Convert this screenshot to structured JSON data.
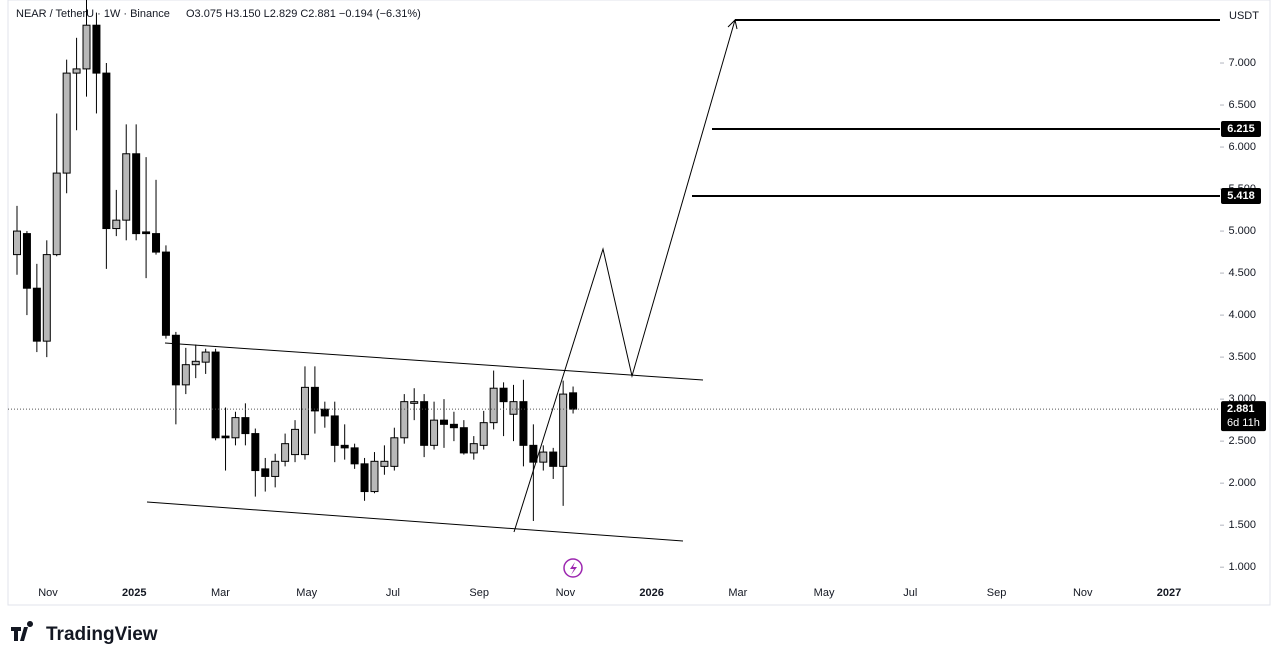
{
  "chart_data": {
    "type": "candlestick",
    "title": "NEAR / TetherU · 1W · Binance",
    "ohlc_text": "O3.075 H3.150 L2.829 C2.881 −0.194 (−6.31%)",
    "currency": "USDT",
    "brand": "TradingView",
    "up_color": "#b8b8b8",
    "down_color": "#000000",
    "open": [
      4.72,
      4.97,
      4.32,
      3.69,
      4.72,
      5.69,
      6.88,
      6.93,
      7.45,
      6.88,
      5.03,
      5.13,
      5.92,
      4.99,
      4.97,
      4.75,
      3.76,
      3.17,
      3.41,
      3.44,
      3.56,
      2.56,
      2.54,
      2.78,
      2.59,
      2.17,
      2.08,
      2.26,
      2.34,
      2.34,
      3.14,
      2.88,
      2.8,
      2.45,
      2.42,
      2.23,
      1.9,
      2.2,
      2.2,
      2.54,
      2.95,
      2.97,
      2.45,
      2.75,
      2.7,
      2.66,
      2.36,
      2.45,
      2.72,
      3.13,
      2.82,
      2.97,
      2.45,
      2.25,
      2.37,
      2.2,
      3.075
    ],
    "high": [
      5.3,
      5.0,
      4.61,
      4.89,
      6.4,
      7.04,
      7.3,
      7.8,
      7.6,
      7.0,
      5.49,
      6.27,
      6.27,
      5.88,
      5.61,
      4.83,
      3.8,
      3.61,
      3.65,
      3.6,
      3.6,
      2.9,
      2.85,
      2.95,
      2.65,
      2.3,
      2.35,
      2.59,
      2.75,
      3.39,
      3.39,
      2.97,
      2.97,
      2.7,
      2.47,
      2.3,
      2.37,
      2.45,
      2.66,
      3.06,
      3.13,
      3.06,
      2.97,
      3.0,
      2.85,
      2.75,
      2.56,
      2.86,
      3.34,
      3.2,
      3.17,
      3.23,
      2.7,
      2.45,
      2.42,
      3.22,
      3.15
    ],
    "low": [
      4.48,
      4.0,
      3.56,
      3.5,
      4.7,
      5.45,
      6.2,
      6.6,
      6.4,
      4.55,
      4.94,
      4.89,
      4.89,
      4.44,
      4.72,
      3.72,
      2.7,
      3.06,
      3.25,
      3.3,
      2.51,
      2.15,
      2.45,
      2.45,
      1.84,
      1.9,
      1.95,
      2.2,
      2.25,
      2.28,
      2.59,
      2.66,
      2.25,
      2.28,
      2.17,
      1.79,
      1.88,
      2.1,
      2.15,
      2.47,
      2.75,
      2.31,
      2.4,
      2.42,
      2.5,
      2.34,
      2.28,
      2.4,
      2.64,
      2.56,
      2.5,
      2.2,
      1.55,
      2.15,
      2.05,
      1.73,
      2.829
    ],
    "close": [
      5.0,
      4.32,
      3.69,
      4.72,
      5.69,
      6.88,
      6.93,
      7.45,
      6.88,
      5.03,
      5.13,
      5.92,
      4.97,
      4.97,
      4.75,
      3.76,
      3.17,
      3.41,
      3.45,
      3.56,
      2.54,
      2.54,
      2.78,
      2.59,
      2.15,
      2.08,
      2.26,
      2.47,
      2.64,
      3.14,
      2.86,
      2.8,
      2.45,
      2.42,
      2.23,
      1.9,
      2.26,
      2.26,
      2.54,
      2.97,
      2.97,
      2.45,
      2.75,
      2.7,
      2.66,
      2.36,
      2.47,
      2.72,
      3.13,
      2.97,
      2.97,
      2.45,
      2.25,
      2.37,
      2.2,
      3.06,
      2.881
    ],
    "xticks": [
      "Nov",
      "2025",
      "Mar",
      "May",
      "Jul",
      "Sep",
      "Nov",
      "2026",
      "Mar",
      "May",
      "Jul",
      "Sep",
      "Nov",
      "2027"
    ],
    "ylim": [
      0.55,
      7.75
    ],
    "yticks": [
      {
        "value": 1,
        "label": "1.000"
      },
      {
        "value": 1.5,
        "label": "1.500"
      },
      {
        "value": 2,
        "label": "2.000"
      },
      {
        "value": 2.5,
        "label": "2.500"
      },
      {
        "value": 3,
        "label": "3.000"
      },
      {
        "value": 3.5,
        "label": "3.500"
      },
      {
        "value": 4,
        "label": "4.000"
      },
      {
        "value": 4.5,
        "label": "4.500"
      },
      {
        "value": 5,
        "label": "5.000"
      },
      {
        "value": 5.5,
        "label": "5.500"
      },
      {
        "value": 6,
        "label": "6.000"
      },
      {
        "value": 6.5,
        "label": "6.500"
      },
      {
        "value": 7,
        "label": "7.000"
      }
    ],
    "levels": [
      {
        "value": 6.215,
        "label": "6.215"
      },
      {
        "value": 5.418,
        "label": "5.418"
      }
    ],
    "last_price": {
      "value": 2.881,
      "label": "2.881"
    },
    "countdown": "6d 11h"
  }
}
